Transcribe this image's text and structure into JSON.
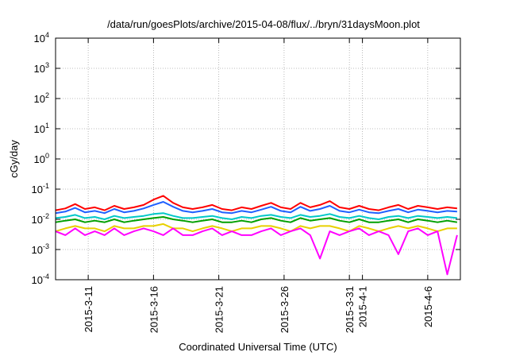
{
  "chart_data": {
    "type": "line",
    "title": "/data/run/goesPlots/archive/2015-04-08/flux/../bryn/31daysMoon.plot",
    "xlabel": "Coordinated Universal Time (UTC)",
    "ylabel": "cGy/day",
    "y_scale": "log",
    "ylim": [
      0.0001,
      10000
    ],
    "y_tick_labels": [
      {
        "value": 0.0001,
        "base": "10",
        "exp": "-4"
      },
      {
        "value": 0.001,
        "base": "10",
        "exp": "-3"
      },
      {
        "value": 0.01,
        "base": "10",
        "exp": "-2"
      },
      {
        "value": 0.1,
        "base": "10",
        "exp": "-1"
      },
      {
        "value": 1,
        "base": "10",
        "exp": "0"
      },
      {
        "value": 10,
        "base": "10",
        "exp": "1"
      },
      {
        "value": 100,
        "base": "10",
        "exp": "2"
      },
      {
        "value": 1000,
        "base": "10",
        "exp": "3"
      },
      {
        "value": 10000,
        "base": "10",
        "exp": "4"
      }
    ],
    "xlim": [
      "2015-03-08T12:00",
      "2015-04-08T12:00"
    ],
    "x_tick_labels": [
      "2015-3-11",
      "2015-3-16",
      "2015-3-21",
      "2015-3-26",
      "2015-3-31",
      "2015-4-1",
      "2015-4-6"
    ],
    "x_tick_values": [
      "2015-03-11",
      "2015-03-16",
      "2015-03-21",
      "2015-03-26",
      "2015-03-31",
      "2015-04-01",
      "2015-04-06"
    ],
    "grid": true,
    "legend": "none",
    "x": [
      "2015-03-08T12:00",
      "2015-03-09T06:00",
      "2015-03-10T00:00",
      "2015-03-10T18:00",
      "2015-03-11T12:00",
      "2015-03-12T06:00",
      "2015-03-13T00:00",
      "2015-03-13T18:00",
      "2015-03-14T12:00",
      "2015-03-15T06:00",
      "2015-03-16T00:00",
      "2015-03-16T18:00",
      "2015-03-17T12:00",
      "2015-03-18T06:00",
      "2015-03-19T00:00",
      "2015-03-19T18:00",
      "2015-03-20T12:00",
      "2015-03-21T06:00",
      "2015-03-22T00:00",
      "2015-03-22T18:00",
      "2015-03-23T12:00",
      "2015-03-24T06:00",
      "2015-03-25T00:00",
      "2015-03-25T18:00",
      "2015-03-26T12:00",
      "2015-03-27T06:00",
      "2015-03-28T00:00",
      "2015-03-28T18:00",
      "2015-03-29T12:00",
      "2015-03-30T06:00",
      "2015-03-31T00:00",
      "2015-03-31T18:00",
      "2015-04-01T12:00",
      "2015-04-02T06:00",
      "2015-04-03T00:00",
      "2015-04-03T18:00",
      "2015-04-04T12:00",
      "2015-04-05T06:00",
      "2015-04-06T00:00",
      "2015-04-06T18:00",
      "2015-04-07T12:00",
      "2015-04-08T06:00"
    ],
    "series": [
      {
        "color": "#ff0000",
        "values": [
          0.02,
          0.023,
          0.032,
          0.022,
          0.025,
          0.02,
          0.028,
          0.022,
          0.025,
          0.03,
          0.045,
          0.06,
          0.035,
          0.025,
          0.022,
          0.025,
          0.03,
          0.022,
          0.02,
          0.025,
          0.022,
          0.028,
          0.035,
          0.025,
          0.022,
          0.035,
          0.025,
          0.03,
          0.04,
          0.025,
          0.022,
          0.028,
          0.022,
          0.02,
          0.025,
          0.03,
          0.022,
          0.028,
          0.025,
          0.022,
          0.025,
          0.023
        ]
      },
      {
        "color": "#2060ff",
        "values": [
          0.016,
          0.018,
          0.024,
          0.017,
          0.019,
          0.016,
          0.022,
          0.017,
          0.019,
          0.023,
          0.03,
          0.038,
          0.026,
          0.019,
          0.017,
          0.019,
          0.022,
          0.017,
          0.016,
          0.019,
          0.017,
          0.021,
          0.026,
          0.019,
          0.017,
          0.026,
          0.019,
          0.022,
          0.028,
          0.019,
          0.017,
          0.021,
          0.017,
          0.016,
          0.019,
          0.022,
          0.017,
          0.021,
          0.019,
          0.017,
          0.019,
          0.018
        ]
      },
      {
        "color": "#00c8c8",
        "values": [
          0.011,
          0.012,
          0.014,
          0.011,
          0.012,
          0.01,
          0.013,
          0.011,
          0.012,
          0.013,
          0.015,
          0.016,
          0.013,
          0.011,
          0.011,
          0.012,
          0.013,
          0.011,
          0.01,
          0.012,
          0.011,
          0.013,
          0.014,
          0.012,
          0.011,
          0.014,
          0.012,
          0.013,
          0.015,
          0.012,
          0.011,
          0.013,
          0.011,
          0.01,
          0.012,
          0.013,
          0.011,
          0.013,
          0.012,
          0.011,
          0.012,
          0.011
        ]
      },
      {
        "color": "#00a000",
        "values": [
          0.008,
          0.009,
          0.01,
          0.008,
          0.009,
          0.008,
          0.01,
          0.008,
          0.009,
          0.01,
          0.011,
          0.012,
          0.01,
          0.009,
          0.008,
          0.009,
          0.01,
          0.008,
          0.008,
          0.009,
          0.008,
          0.01,
          0.011,
          0.009,
          0.008,
          0.011,
          0.009,
          0.01,
          0.011,
          0.009,
          0.008,
          0.01,
          0.008,
          0.008,
          0.009,
          0.01,
          0.008,
          0.01,
          0.009,
          0.008,
          0.009,
          0.008
        ]
      },
      {
        "color": "#e8d000",
        "values": [
          0.004,
          0.005,
          0.006,
          0.005,
          0.005,
          0.004,
          0.006,
          0.005,
          0.005,
          0.006,
          0.006,
          0.007,
          0.005,
          0.005,
          0.004,
          0.005,
          0.006,
          0.005,
          0.004,
          0.005,
          0.005,
          0.006,
          0.006,
          0.005,
          0.004,
          0.006,
          0.005,
          0.006,
          0.006,
          0.005,
          0.004,
          0.006,
          0.005,
          0.004,
          0.005,
          0.006,
          0.005,
          0.006,
          0.005,
          0.004,
          0.005,
          0.005
        ]
      },
      {
        "color": "#ff00ff",
        "values": [
          0.004,
          0.003,
          0.005,
          0.003,
          0.004,
          0.003,
          0.005,
          0.003,
          0.004,
          0.005,
          0.004,
          0.003,
          0.005,
          0.003,
          0.003,
          0.004,
          0.005,
          0.003,
          0.004,
          0.003,
          0.003,
          0.004,
          0.005,
          0.003,
          0.004,
          0.005,
          0.003,
          0.0005,
          0.004,
          0.003,
          0.004,
          0.005,
          0.003,
          0.004,
          0.003,
          0.0007,
          0.004,
          0.005,
          0.003,
          0.004,
          0.00015,
          0.003
        ]
      }
    ]
  }
}
